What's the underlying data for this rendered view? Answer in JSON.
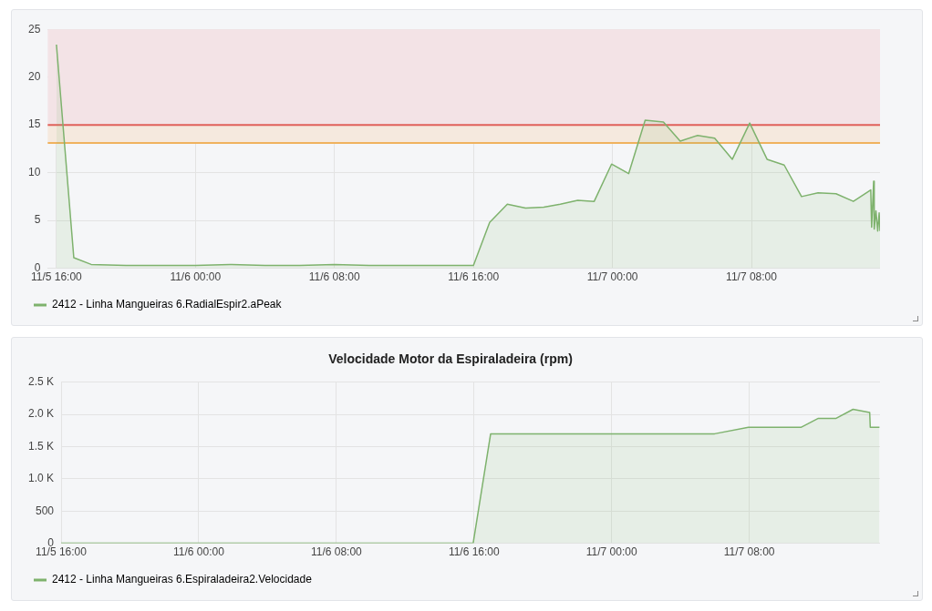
{
  "chart_data": [
    {
      "type": "area",
      "x": [
        "--11-05T16:00",
        "--11-05T17:00",
        "--11-05T18:00",
        "--11-05T20:00",
        "--11-05T22:00",
        "--11-06T00:00",
        "--11-06T02:00",
        "--11-06T04:00",
        "--11-06T06:00",
        "--11-06T08:00",
        "--11-06T10:00",
        "--11-06T12:00",
        "--11-06T14:00",
        "--11-06T16:00",
        "--11-06T16:56",
        "--11-06T17:57",
        "--11-06T19:00",
        "--11-06T20:03",
        "--11-06T21:00",
        "--11-06T22:00",
        "--11-06T22:57",
        "--11-06T23:57",
        "--11-07T00:56",
        "--11-07T01:53",
        "--11-07T02:56",
        "--11-07T03:54",
        "--11-07T04:54",
        "--11-07T05:53",
        "--11-07T06:54",
        "--11-07T07:54",
        "--11-07T08:54",
        "--11-07T09:53",
        "--11-07T10:53",
        "--11-07T11:50",
        "--11-07T12:52",
        "--11-07T13:52",
        "--11-07T14:52",
        "--11-07T14:55",
        "--11-07T15:02",
        "--11-07T15:04",
        "--11-07T15:10",
        "--11-07T15:16",
        "--11-07T15:21",
        "--11-07T15:24"
      ],
      "series": [
        {
          "name": "2412 - Linha Mangueiras 6.RadialEspir2.aPeak",
          "color": "#7eb26d",
          "values": [
            23.4,
            1.1,
            0.4,
            0.3,
            0.3,
            0.3,
            0.4,
            0.3,
            0.3,
            0.4,
            0.3,
            0.3,
            0.3,
            0.3,
            4.8,
            6.7,
            6.3,
            6.4,
            6.7,
            7.1,
            7.0,
            10.9,
            9.9,
            15.5,
            15.3,
            13.3,
            13.9,
            13.6,
            11.4,
            15.2,
            11.4,
            10.8,
            7.5,
            7.9,
            7.8,
            7.0,
            8.2,
            4.3,
            9.1,
            4.1,
            6.0,
            3.9,
            5.8,
            3.9
          ]
        }
      ],
      "xlim": [
        "--11-05T15:30",
        "--11-07T15:24"
      ],
      "xticks": [
        {
          "value": "--11-05T16:00",
          "label": "11/5 16:00"
        },
        {
          "value": "--11-06T00:00",
          "label": "11/6 00:00"
        },
        {
          "value": "--11-06T08:00",
          "label": "11/6 08:00"
        },
        {
          "value": "--11-06T16:00",
          "label": "11/6 16:00"
        },
        {
          "value": "--11-07T00:00",
          "label": "11/7 00:00"
        },
        {
          "value": "--11-07T08:00",
          "label": "11/7 08:00"
        }
      ],
      "ylim": [
        0,
        25
      ],
      "yticks": [
        0,
        5,
        10,
        15,
        20,
        25
      ],
      "bands": [
        {
          "axis": "y",
          "from": 15,
          "to": 25,
          "color": "#f3e3e6"
        },
        {
          "axis": "y",
          "from": 13.1,
          "to": 15,
          "color": "#f5e9de"
        }
      ],
      "ref_lines": [
        {
          "axis": "y",
          "value": 15,
          "color": "#e0605a"
        },
        {
          "axis": "y",
          "value": 13.1,
          "color": "#f0b25e"
        }
      ],
      "grid": true,
      "legend": "bottom left"
    },
    {
      "type": "area",
      "title": "Velocidade Motor da Espiraladeira (rpm)",
      "x": [
        "--11-05T16:00",
        "--11-06T15:57",
        "--11-06T16:58",
        "--11-07T05:59",
        "--11-07T07:57",
        "--11-07T11:00",
        "--11-07T12:01",
        "--11-07T13:03",
        "--11-07T14:02",
        "--11-07T15:00",
        "--11-07T15:02",
        "--11-07T15:34"
      ],
      "series": [
        {
          "name": "2412 - Linha Mangueiras 6.Espiraladeira2.Velocidade",
          "color": "#7eb26d",
          "values": [
            0,
            0,
            1700,
            1700,
            1800,
            1800,
            1940,
            1940,
            2080,
            2030,
            1800,
            1800
          ]
        }
      ],
      "xlim": [
        "--11-05T16:00",
        "--11-07T15:36"
      ],
      "xticks": [
        {
          "value": "--11-05T16:00",
          "label": "11/5 16:00"
        },
        {
          "value": "--11-06T00:00",
          "label": "11/6 00:00"
        },
        {
          "value": "--11-06T08:00",
          "label": "11/6 08:00"
        },
        {
          "value": "--11-06T16:00",
          "label": "11/6 16:00"
        },
        {
          "value": "--11-07T00:00",
          "label": "11/7 00:00"
        },
        {
          "value": "--11-07T08:00",
          "label": "11/7 08:00"
        }
      ],
      "ylim": [
        0,
        2500
      ],
      "yticks": [
        0,
        500,
        {
          "value": 1000,
          "label": "1.0 K"
        },
        {
          "value": 1500,
          "label": "1.5 K"
        },
        {
          "value": 2000,
          "label": "2.0 K"
        },
        {
          "value": 2500,
          "label": "2.5 K"
        }
      ],
      "grid": true,
      "legend": "bottom left"
    }
  ]
}
